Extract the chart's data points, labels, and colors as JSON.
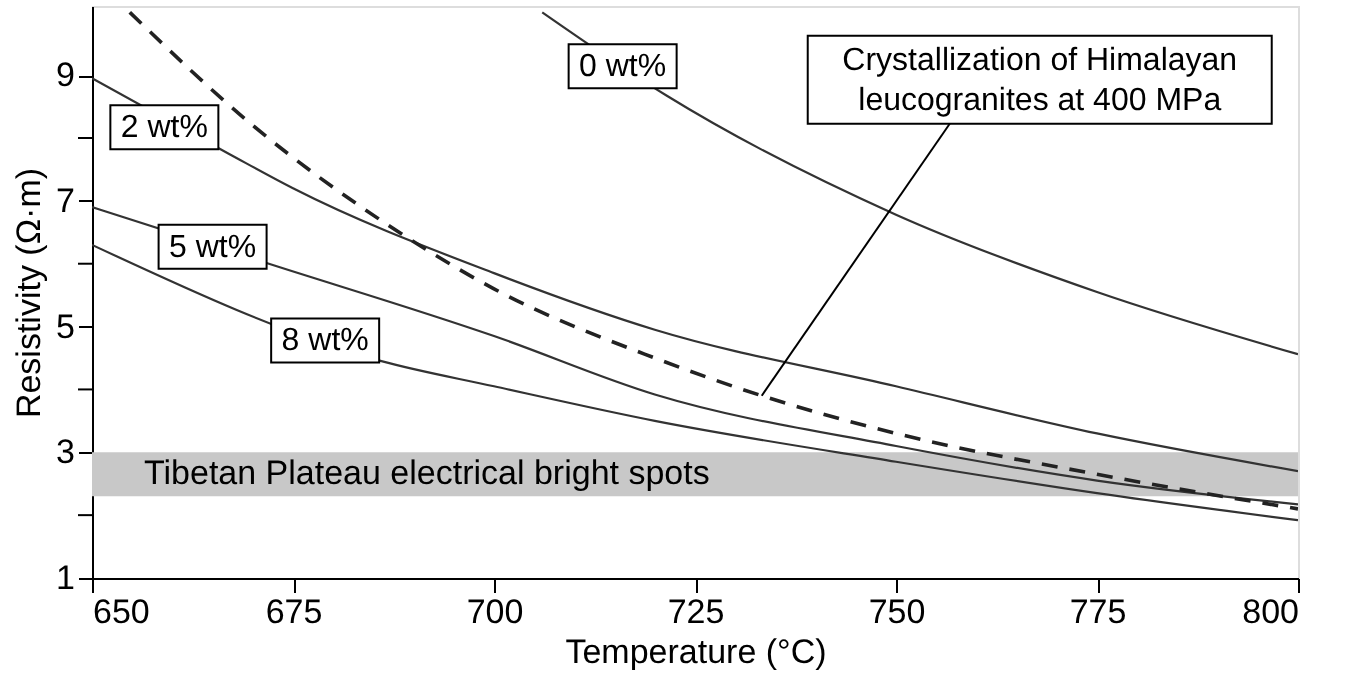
{
  "chart_data": {
    "type": "line",
    "xlabel": "Temperature (°C)",
    "ylabel": "Resistivity (Ω·m)",
    "xlim": [
      650,
      800
    ],
    "xticks": [
      650,
      675,
      700,
      725,
      750,
      775,
      800
    ],
    "ylim": [
      1,
      10.1
    ],
    "yticks": [
      1,
      {
        "value": 2,
        "label": null
      },
      3,
      {
        "value": 4,
        "label": null
      },
      5,
      {
        "value": 6,
        "label": null
      },
      7,
      {
        "value": 8,
        "label": null
      },
      9
    ],
    "grid": false,
    "marker": "none",
    "series": [
      {
        "color": "#333333",
        "line_style": "solid",
        "x": [
          706,
          721.4,
          750,
          775,
          800
        ],
        "values": [
          10,
          8.68,
          6.78,
          5.55,
          4.56
        ]
      },
      {
        "color": "#333333",
        "line_style": "solid",
        "x": [
          650,
          667,
          675,
          700,
          720,
          750,
          775,
          800
        ],
        "values": [
          8.95,
          7.75,
          7.2,
          5.85,
          4.95,
          4.05,
          3.3,
          2.7
        ]
      },
      {
        "color": "#333333",
        "line_style": "solid",
        "x": [
          650,
          672,
          700,
          720,
          750,
          775,
          800
        ],
        "values": [
          6.9,
          6.0,
          4.85,
          3.92,
          3.1,
          2.55,
          2.17
        ]
      },
      {
        "color": "#333333",
        "line_style": "solid",
        "x": [
          650,
          686,
          700,
          720,
          750,
          775,
          800
        ],
        "values": [
          6.3,
          4.45,
          4.05,
          3.5,
          2.85,
          2.35,
          1.92
        ]
      },
      {
        "color": "#222222",
        "line_style": "dashed",
        "x": [
          654.7,
          670,
          687,
          700,
          720,
          733.3,
          750,
          775,
          800
        ],
        "values": [
          10,
          8.2,
          6.6,
          5.6,
          4.5,
          3.9,
          3.3,
          2.65,
          2.1
        ]
      }
    ],
    "bands": [
      {
        "axis": "y",
        "from": 2.3,
        "to": 3.0,
        "label": "Tibetan Plateau electrical bright spots",
        "color": "#c8c8c8"
      }
    ],
    "annotations": [
      {
        "text": "0 wt%",
        "x": 716,
        "y": 9.14
      },
      {
        "text": "2 wt%",
        "x": 659,
        "y": 8.17
      },
      {
        "text": "5 wt%",
        "x": 665,
        "y": 6.27
      },
      {
        "text": "8 wt%",
        "x": 679,
        "y": 4.78
      },
      {
        "text": "Crystallization of Himalayan\nleucogranites at 400 MPa",
        "x": 733.3,
        "y": 3.9
      }
    ]
  }
}
